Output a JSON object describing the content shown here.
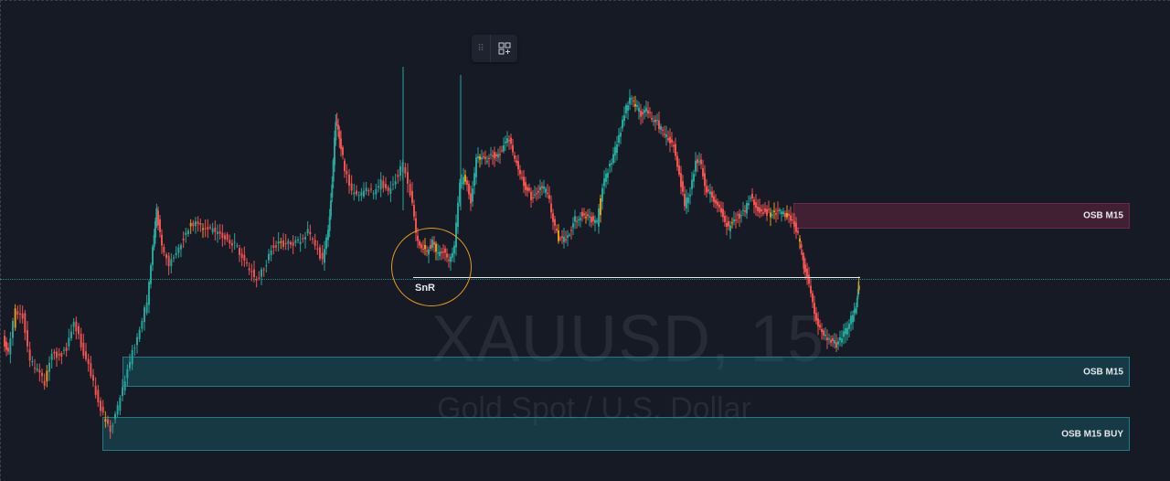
{
  "watermark": {
    "symbol": "XAUUSD, 15",
    "description": "Gold Spot / U.S. Dollar"
  },
  "zones": [
    {
      "label": "OSB M15",
      "type": "supply",
      "color": "#782846"
    },
    {
      "label": "OSB M15",
      "type": "demand",
      "color": "#18646e"
    },
    {
      "label": "OSB M15 BUY",
      "type": "demand",
      "color": "#18646e"
    }
  ],
  "annotation": {
    "label": "SnR",
    "circle_color": "#e69a1d"
  },
  "toolbar": {
    "drag_icon": "drag-handle-icon",
    "add_icon": "add-widget-icon"
  },
  "colors": {
    "background": "#161a25",
    "up": "#26a69a",
    "down": "#ef5350",
    "neutral": "#e69a1d"
  },
  "chart_data": {
    "type": "candlestick",
    "symbol": "XAUUSD",
    "timeframe": "15",
    "trend": "range-bound with drop then rebound"
  }
}
